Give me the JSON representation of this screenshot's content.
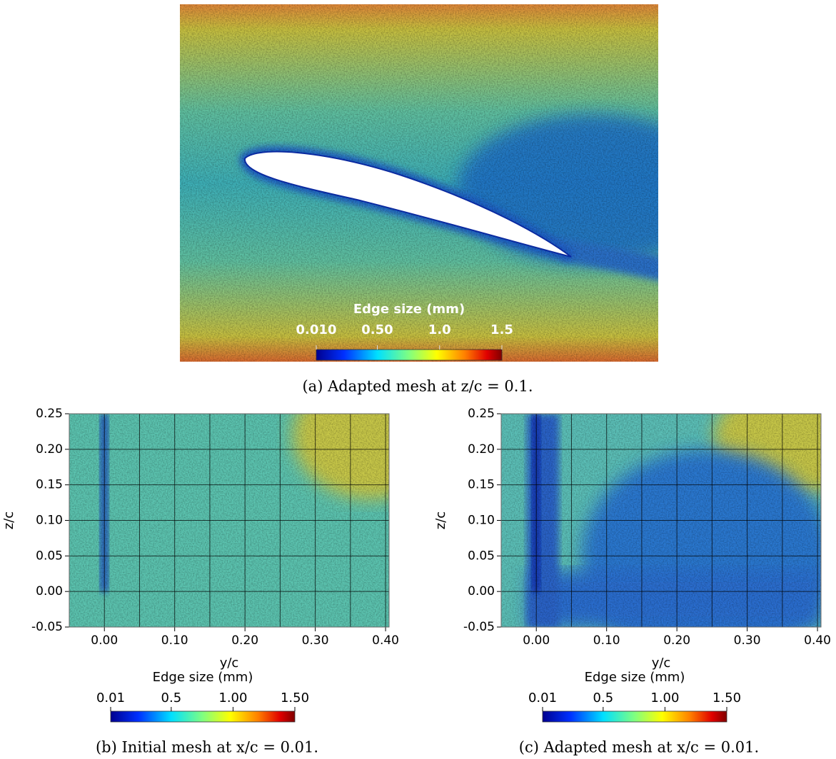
{
  "panels": [
    {
      "caption": "(a) Adapted mesh at z/c = 0.1.",
      "colorbar": {
        "title": "Edge size (mm)",
        "range": [
          0.01,
          1.5
        ],
        "ticks": [
          {
            "value": 0.01,
            "label": "0.010"
          },
          {
            "value": 0.5,
            "label": "0.50"
          },
          {
            "value": 1,
            "label": "1.0"
          },
          1.5
        ]
      }
    },
    {
      "caption": "(b) Initial mesh at x/c = 0.01.",
      "xlabel": "y/c",
      "ylabel": "z/c",
      "xlim": [
        -0.05,
        0.405
      ],
      "ylim": [
        -0.05,
        0.25
      ],
      "xticks": [
        {
          "value": 0,
          "label": "0.00"
        },
        {
          "value": 0.1,
          "label": "0.10"
        },
        {
          "value": 0.2,
          "label": "0.20"
        },
        {
          "value": 0.3,
          "label": "0.30"
        },
        {
          "value": 0.4,
          "label": "0.40"
        }
      ],
      "xminor": [
        0.05,
        0.15,
        0.25,
        0.35
      ],
      "yticks": [
        -0.05,
        {
          "value": 0,
          "label": "0.00"
        },
        0.05,
        {
          "value": 0.1,
          "label": "0.10"
        },
        0.15,
        {
          "value": 0.2,
          "label": "0.20"
        },
        0.25
      ],
      "colorbar": {
        "title": "Edge size (mm)",
        "range": [
          0.01,
          1.5
        ],
        "ticks": [
          0.01,
          0.5,
          {
            "value": 1,
            "label": "1.00"
          },
          {
            "value": 1.5,
            "label": "1.50"
          }
        ]
      }
    },
    {
      "caption": "(c) Adapted mesh at x/c = 0.01.",
      "xlabel": "y/c",
      "ylabel": "z/c",
      "xlim": [
        -0.05,
        0.405
      ],
      "ylim": [
        -0.05,
        0.25
      ],
      "xticks": [
        {
          "value": 0,
          "label": "0.00"
        },
        {
          "value": 0.1,
          "label": "0.10"
        },
        {
          "value": 0.2,
          "label": "0.20"
        },
        {
          "value": 0.3,
          "label": "0.30"
        },
        {
          "value": 0.4,
          "label": "0.40"
        }
      ],
      "xminor": [
        0.05,
        0.15,
        0.25,
        0.35
      ],
      "yticks": [
        -0.05,
        {
          "value": 0,
          "label": "0.00"
        },
        0.05,
        {
          "value": 0.1,
          "label": "0.10"
        },
        0.15,
        {
          "value": 0.2,
          "label": "0.20"
        },
        0.25
      ],
      "colorbar": {
        "title": "Edge size (mm)",
        "range": [
          0.01,
          1.5
        ],
        "ticks": [
          0.01,
          0.5,
          {
            "value": 1,
            "label": "1.00"
          },
          {
            "value": 1.5,
            "label": "1.50"
          }
        ]
      }
    }
  ]
}
